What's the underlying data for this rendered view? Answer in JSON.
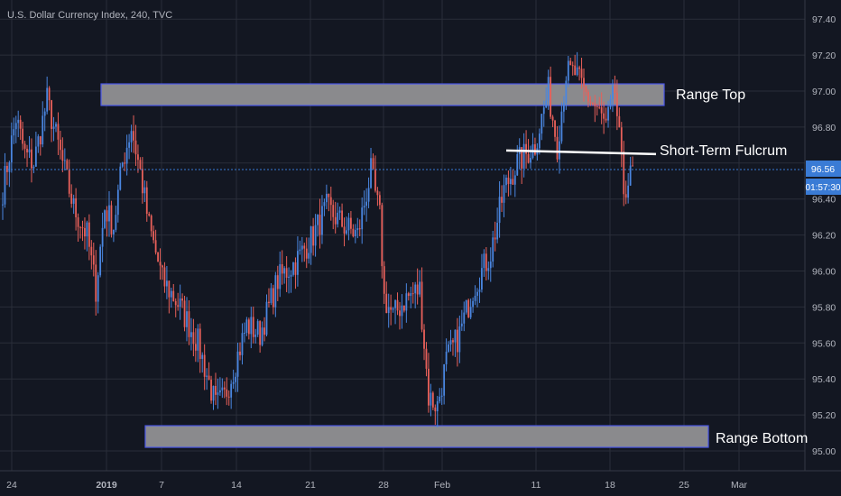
{
  "title": "U.S. Dollar Currency Index, 240, TVC",
  "chart_data": {
    "type": "candlestick",
    "title": "U.S. Dollar Currency Index, 240, TVC",
    "ylim": [
      94.9,
      97.5
    ],
    "y_ticks": [
      "97.40",
      "97.20",
      "97.00",
      "96.80",
      "96.60",
      "96.40",
      "96.20",
      "96.00",
      "95.80",
      "95.60",
      "95.40",
      "95.20",
      "95.00"
    ],
    "x_tick_labels": [
      {
        "label": "24",
        "bold": false
      },
      {
        "label": "2019",
        "bold": true
      },
      {
        "label": "7",
        "bold": false
      },
      {
        "label": "14",
        "bold": false
      },
      {
        "label": "21",
        "bold": false
      },
      {
        "label": "28",
        "bold": false
      },
      {
        "label": "Feb",
        "bold": false
      },
      {
        "label": "11",
        "bold": false
      },
      {
        "label": "18",
        "bold": false
      },
      {
        "label": "25",
        "bold": false
      },
      {
        "label": "Mar",
        "bold": false
      }
    ],
    "last_price": "96.56",
    "countdown": "01:57:30",
    "grid": true,
    "colors": {
      "background": "#131722",
      "up": "#4a86e0",
      "down": "#e8605a",
      "zone_fill": "#8a8a8d",
      "zone_border": "#4a57e8",
      "price_badge": "#3a7bd5",
      "fulcrum_line": "#ffffff"
    },
    "anchors": [
      [
        0,
        96.45
      ],
      [
        6,
        96.85
      ],
      [
        10,
        96.65
      ],
      [
        14,
        96.6
      ],
      [
        20,
        96.95
      ],
      [
        26,
        96.65
      ],
      [
        32,
        96.35
      ],
      [
        38,
        96.2
      ],
      [
        42,
        95.9
      ],
      [
        46,
        96.35
      ],
      [
        50,
        96.25
      ],
      [
        54,
        96.6
      ],
      [
        58,
        96.8
      ],
      [
        62,
        96.55
      ],
      [
        66,
        96.25
      ],
      [
        72,
        95.95
      ],
      [
        80,
        95.8
      ],
      [
        88,
        95.6
      ],
      [
        96,
        95.25
      ],
      [
        100,
        95.3
      ],
      [
        104,
        95.45
      ],
      [
        110,
        95.7
      ],
      [
        116,
        95.65
      ],
      [
        124,
        95.95
      ],
      [
        132,
        96.05
      ],
      [
        140,
        96.2
      ],
      [
        146,
        96.35
      ],
      [
        154,
        96.25
      ],
      [
        160,
        96.2
      ],
      [
        166,
        96.55
      ],
      [
        170,
        96.3
      ],
      [
        172,
        95.85
      ],
      [
        176,
        95.75
      ],
      [
        182,
        95.85
      ],
      [
        188,
        95.9
      ],
      [
        192,
        95.3
      ],
      [
        196,
        95.25
      ],
      [
        200,
        95.5
      ],
      [
        206,
        95.65
      ],
      [
        212,
        95.9
      ],
      [
        220,
        96.1
      ],
      [
        226,
        96.45
      ],
      [
        232,
        96.6
      ],
      [
        240,
        96.7
      ],
      [
        246,
        97.0
      ],
      [
        250,
        96.7
      ],
      [
        254,
        97.1
      ],
      [
        258,
        97.1
      ],
      [
        262,
        97.0
      ],
      [
        268,
        96.9
      ],
      [
        272,
        96.8
      ],
      [
        276,
        97.0
      ],
      [
        280,
        96.45
      ],
      [
        284,
        96.55
      ]
    ],
    "zones": [
      {
        "label": "Range Top",
        "y_top": 97.04,
        "y_bottom": 96.92
      },
      {
        "label": "Range Bottom",
        "y_top": 95.14,
        "y_bottom": 95.02
      }
    ],
    "fulcrum": {
      "label": "Short-Term Fulcrum",
      "y_start": 96.67,
      "y_end": 96.65
    }
  }
}
